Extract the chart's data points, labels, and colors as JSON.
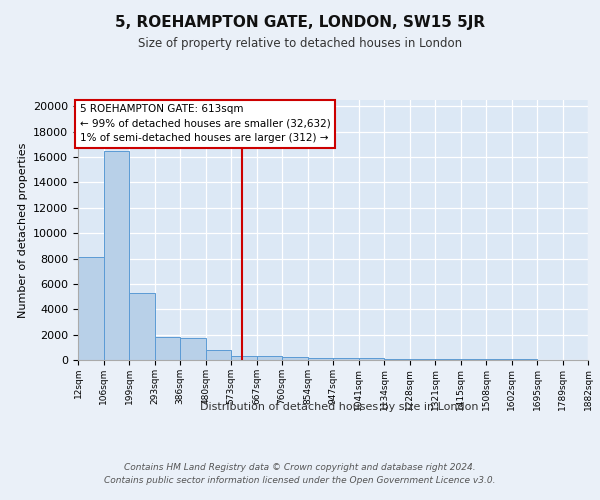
{
  "title": "5, ROEHAMPTON GATE, LONDON, SW15 5JR",
  "subtitle": "Size of property relative to detached houses in London",
  "xlabel": "Distribution of detached houses by size in London",
  "ylabel": "Number of detached properties",
  "bar_edges": [
    12,
    106,
    199,
    293,
    386,
    480,
    573,
    667,
    760,
    854,
    947,
    1041,
    1134,
    1228,
    1321,
    1415,
    1508,
    1602,
    1695,
    1789,
    1882
  ],
  "bar_heights": [
    8100,
    16500,
    5300,
    1800,
    1750,
    750,
    350,
    300,
    200,
    175,
    150,
    125,
    110,
    90,
    75,
    60,
    50,
    40,
    30,
    20
  ],
  "bar_color": "#b8d0e8",
  "bar_edge_color": "#5b9bd5",
  "background_color": "#dce8f5",
  "grid_color": "#ffffff",
  "vline_x": 613,
  "vline_color": "#cc0000",
  "annotation_line1": "5 ROEHAMPTON GATE: 613sqm",
  "annotation_line2": "← 99% of detached houses are smaller (32,632)",
  "annotation_line3": "1% of semi-detached houses are larger (312) →",
  "annotation_box_facecolor": "#ffffff",
  "annotation_box_edgecolor": "#cc0000",
  "ylim": [
    0,
    20500
  ],
  "yticks": [
    0,
    2000,
    4000,
    6000,
    8000,
    10000,
    12000,
    14000,
    16000,
    18000,
    20000
  ],
  "fig_facecolor": "#eaf0f8",
  "footer_line1": "Contains HM Land Registry data © Crown copyright and database right 2024.",
  "footer_line2": "Contains public sector information licensed under the Open Government Licence v3.0."
}
